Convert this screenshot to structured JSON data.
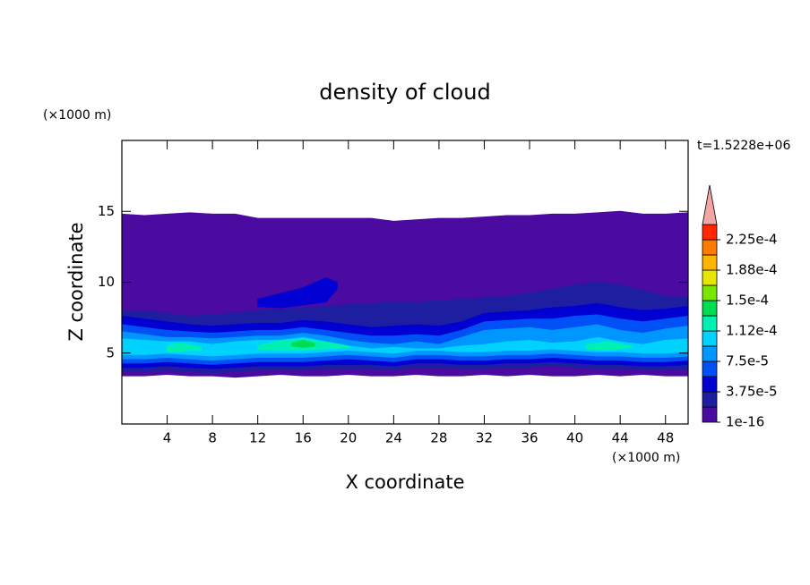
{
  "chart_data": {
    "type": "contour",
    "title": "density of cloud",
    "x_label": "X coordinate",
    "y_label": "Z coordinate",
    "x_unit": "(×1000 m)",
    "y_unit": "(×1000 m)",
    "annotation": "t=1.5228e+06",
    "xlim": [
      0,
      50
    ],
    "xticks": [
      4,
      8,
      12,
      16,
      20,
      24,
      28,
      32,
      36,
      40,
      44,
      48
    ],
    "ylim": [
      0,
      20
    ],
    "yticks": [
      5,
      10,
      15
    ],
    "colorbar": {
      "levels": [
        1e-16,
        1.875e-05,
        3.75e-05,
        5.625e-05,
        7.5e-05,
        9.375e-05,
        0.0001125,
        0.00013125,
        0.00015,
        0.00016875,
        0.0001875,
        0.00020625,
        0.000225,
        0.00024375
      ],
      "colors": [
        "#4b0aa0",
        "#1e1ea0",
        "#0000d2",
        "#0050f5",
        "#0096ff",
        "#00d2ff",
        "#00f0b4",
        "#00dc50",
        "#78e600",
        "#e6e600",
        "#ffb400",
        "#ff7800",
        "#ff2800"
      ],
      "extend_color": "#f4a6a6",
      "ticks": [
        {
          "value": 1e-16,
          "label": "1e-16"
        },
        {
          "value": 3.75e-05,
          "label": "3.75e-5"
        },
        {
          "value": 7.5e-05,
          "label": "7.5e-5"
        },
        {
          "value": 0.0001125,
          "label": "1.12e-4"
        },
        {
          "value": 0.00015,
          "label": "1.5e-4"
        },
        {
          "value": 0.0001875,
          "label": "1.88e-4"
        },
        {
          "value": 0.000225,
          "label": "2.25e-4"
        }
      ]
    },
    "contours": [
      {
        "level": 1e-16,
        "x": [
          0,
          2,
          4,
          6,
          8,
          10,
          12,
          14,
          16,
          18,
          20,
          22,
          24,
          26,
          28,
          30,
          32,
          34,
          36,
          38,
          40,
          42,
          44,
          46,
          48,
          50
        ],
        "top": [
          14.8,
          14.7,
          14.8,
          14.9,
          14.8,
          14.8,
          14.5,
          14.5,
          14.5,
          14.5,
          14.5,
          14.5,
          14.3,
          14.4,
          14.5,
          14.5,
          14.6,
          14.7,
          14.7,
          14.8,
          14.8,
          14.9,
          15.0,
          14.8,
          14.8,
          14.9
        ],
        "bottom": [
          3.4,
          3.4,
          3.5,
          3.4,
          3.4,
          3.3,
          3.4,
          3.5,
          3.4,
          3.4,
          3.5,
          3.4,
          3.4,
          3.5,
          3.4,
          3.4,
          3.5,
          3.4,
          3.5,
          3.4,
          3.4,
          3.5,
          3.4,
          3.5,
          3.4,
          3.4
        ]
      },
      {
        "level": 1.875e-05,
        "x": [
          0,
          2,
          4,
          6,
          8,
          10,
          12,
          14,
          16,
          18,
          20,
          22,
          24,
          26,
          28,
          30,
          32,
          34,
          36,
          38,
          40,
          42,
          44,
          46,
          48,
          50
        ],
        "top": [
          7.9,
          8.0,
          7.8,
          7.6,
          7.7,
          7.8,
          8.0,
          8.1,
          8.2,
          8.3,
          8.4,
          8.5,
          8.6,
          8.6,
          8.7,
          8.8,
          8.9,
          9.0,
          9.2,
          9.5,
          9.8,
          10.0,
          9.8,
          9.4,
          9.0,
          8.9
        ],
        "bottom": [
          3.7,
          3.7,
          3.8,
          3.7,
          3.6,
          3.7,
          3.8,
          3.8,
          3.8,
          3.9,
          3.9,
          3.9,
          3.8,
          4.0,
          4.0,
          3.9,
          3.9,
          4.0,
          4.0,
          4.1,
          4.0,
          3.9,
          3.9,
          3.8,
          3.8,
          3.9
        ]
      },
      {
        "level": 3.75e-05,
        "x": [
          0,
          2,
          4,
          6,
          8,
          10,
          12,
          14,
          16,
          18,
          20,
          22,
          24,
          26,
          28,
          30,
          32,
          34,
          36,
          38,
          40,
          42,
          44,
          46,
          48,
          50
        ],
        "top": [
          7.6,
          7.4,
          7.2,
          7.0,
          6.9,
          7.0,
          7.1,
          7.1,
          7.3,
          7.2,
          7.0,
          6.8,
          6.9,
          7.0,
          6.9,
          7.2,
          7.8,
          7.9,
          8.0,
          8.2,
          8.3,
          8.5,
          8.2,
          8.0,
          8.1,
          8.3
        ],
        "bottom": [
          4.0,
          4.0,
          4.1,
          4.0,
          3.9,
          4.0,
          4.1,
          4.1,
          4.1,
          4.2,
          4.2,
          4.2,
          4.1,
          4.3,
          4.3,
          4.2,
          4.2,
          4.3,
          4.3,
          4.4,
          4.3,
          4.2,
          4.2,
          4.1,
          4.1,
          4.2
        ]
      },
      {
        "level": 3.75e-05,
        "x": [
          12,
          14,
          16,
          18,
          19
        ],
        "top": [
          8.8,
          9.2,
          9.6,
          10.3,
          10.0
        ],
        "bottom": [
          8.3,
          8.2,
          8.4,
          8.6,
          9.5
        ]
      },
      {
        "level": 5.625e-05,
        "x": [
          0,
          2,
          4,
          6,
          8,
          10,
          12,
          14,
          16,
          18,
          20,
          22,
          24,
          26,
          28,
          30,
          32,
          34,
          36,
          38,
          40,
          42,
          44,
          46,
          48,
          50
        ],
        "top": [
          7.0,
          6.8,
          6.6,
          6.5,
          6.4,
          6.5,
          6.6,
          6.6,
          6.8,
          6.6,
          6.4,
          6.2,
          6.2,
          6.3,
          6.2,
          6.6,
          7.2,
          7.3,
          7.4,
          7.4,
          7.6,
          7.7,
          7.4,
          7.2,
          7.4,
          7.6
        ],
        "bottom": [
          4.3,
          4.3,
          4.4,
          4.3,
          4.2,
          4.3,
          4.4,
          4.4,
          4.4,
          4.5,
          4.6,
          4.5,
          4.4,
          4.6,
          4.6,
          4.5,
          4.5,
          4.6,
          4.6,
          4.7,
          4.6,
          4.5,
          4.5,
          4.4,
          4.4,
          4.5
        ]
      },
      {
        "level": 7.5e-05,
        "x": [
          0,
          2,
          4,
          6,
          8,
          10,
          12,
          14,
          16,
          18,
          20,
          22,
          24,
          26,
          28,
          30,
          32,
          34,
          36,
          38,
          40,
          42,
          44,
          46,
          48,
          50
        ],
        "top": [
          6.5,
          6.3,
          6.1,
          6.1,
          6.0,
          6.1,
          6.2,
          6.2,
          6.4,
          6.2,
          5.9,
          5.7,
          5.6,
          5.8,
          5.6,
          6.1,
          6.6,
          6.7,
          6.8,
          6.6,
          6.8,
          7.0,
          6.6,
          6.4,
          6.7,
          6.9
        ],
        "bottom": [
          4.6,
          4.6,
          4.7,
          4.6,
          4.5,
          4.6,
          4.7,
          4.7,
          4.7,
          4.8,
          4.9,
          4.8,
          4.7,
          4.9,
          4.9,
          4.8,
          4.8,
          4.9,
          4.9,
          5.0,
          4.9,
          4.8,
          4.8,
          4.7,
          4.7,
          4.8
        ]
      },
      {
        "level": 9.375e-05,
        "x": [
          0,
          2,
          4,
          6,
          8,
          10,
          12,
          14,
          16,
          18,
          20,
          22,
          24,
          26,
          28,
          30,
          32,
          34,
          36,
          38,
          40,
          42,
          44,
          46,
          48,
          50
        ],
        "top": [
          6.0,
          5.9,
          5.8,
          5.8,
          5.6,
          5.8,
          5.9,
          5.9,
          6.1,
          5.8,
          5.5,
          5.3,
          5.4,
          5.3,
          5.3,
          5.5,
          5.6,
          5.8,
          5.9,
          5.7,
          5.8,
          6.1,
          5.8,
          5.6,
          5.9,
          6.0
        ],
        "bottom": [
          4.9,
          4.9,
          5.0,
          4.9,
          4.8,
          4.9,
          5.0,
          5.0,
          5.0,
          5.1,
          5.2,
          5.1,
          5.0,
          5.2,
          5.2,
          5.1,
          5.1,
          5.2,
          5.2,
          5.3,
          5.2,
          5.1,
          5.1,
          5.0,
          5.0,
          5.1
        ]
      },
      {
        "level": 0.0001125,
        "x": [
          4,
          5,
          6,
          7
        ],
        "top": [
          5.5,
          5.7,
          5.6,
          5.4
        ],
        "bottom": [
          5.1,
          5.1,
          5.2,
          5.2
        ]
      },
      {
        "level": 0.0001125,
        "x": [
          12,
          14,
          16,
          18,
          20
        ],
        "top": [
          5.5,
          5.9,
          6.0,
          5.8,
          5.5
        ],
        "bottom": [
          5.3,
          5.2,
          5.2,
          5.3,
          5.4
        ]
      },
      {
        "level": 0.0001125,
        "x": [
          41,
          43,
          45
        ],
        "top": [
          5.6,
          5.8,
          5.5
        ],
        "bottom": [
          5.3,
          5.2,
          5.4
        ]
      },
      {
        "level": 0.00013125,
        "x": [
          15,
          16,
          17
        ],
        "top": [
          5.7,
          5.9,
          5.7
        ],
        "bottom": [
          5.5,
          5.4,
          5.5
        ]
      }
    ]
  }
}
